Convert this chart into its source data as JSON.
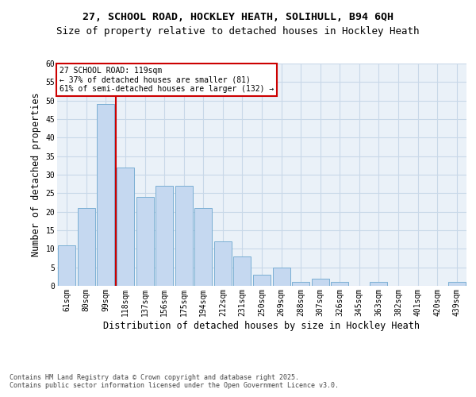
{
  "title_line1": "27, SCHOOL ROAD, HOCKLEY HEATH, SOLIHULL, B94 6QH",
  "title_line2": "Size of property relative to detached houses in Hockley Heath",
  "xlabel": "Distribution of detached houses by size in Hockley Heath",
  "ylabel": "Number of detached properties",
  "categories": [
    "61sqm",
    "80sqm",
    "99sqm",
    "118sqm",
    "137sqm",
    "156sqm",
    "175sqm",
    "194sqm",
    "212sqm",
    "231sqm",
    "250sqm",
    "269sqm",
    "288sqm",
    "307sqm",
    "326sqm",
    "345sqm",
    "363sqm",
    "382sqm",
    "401sqm",
    "420sqm",
    "439sqm"
  ],
  "values": [
    11,
    21,
    49,
    32,
    24,
    27,
    27,
    21,
    12,
    8,
    3,
    5,
    1,
    2,
    1,
    0,
    1,
    0,
    0,
    0,
    1
  ],
  "bar_color": "#c5d8f0",
  "bar_edge_color": "#7bafd4",
  "grid_color": "#c8d8e8",
  "background_color": "#eaf1f8",
  "vline_x": 2.5,
  "vline_color": "#cc0000",
  "annotation_text": "27 SCHOOL ROAD: 119sqm\n← 37% of detached houses are smaller (81)\n61% of semi-detached houses are larger (132) →",
  "annotation_box_color": "#cc0000",
  "ylim": [
    0,
    60
  ],
  "yticks": [
    0,
    5,
    10,
    15,
    20,
    25,
    30,
    35,
    40,
    45,
    50,
    55,
    60
  ],
  "footer_text": "Contains HM Land Registry data © Crown copyright and database right 2025.\nContains public sector information licensed under the Open Government Licence v3.0.",
  "title_fontsize": 9.5,
  "title2_fontsize": 9,
  "axis_label_fontsize": 8.5,
  "tick_fontsize": 7,
  "annotation_fontsize": 7,
  "footer_fontsize": 6
}
